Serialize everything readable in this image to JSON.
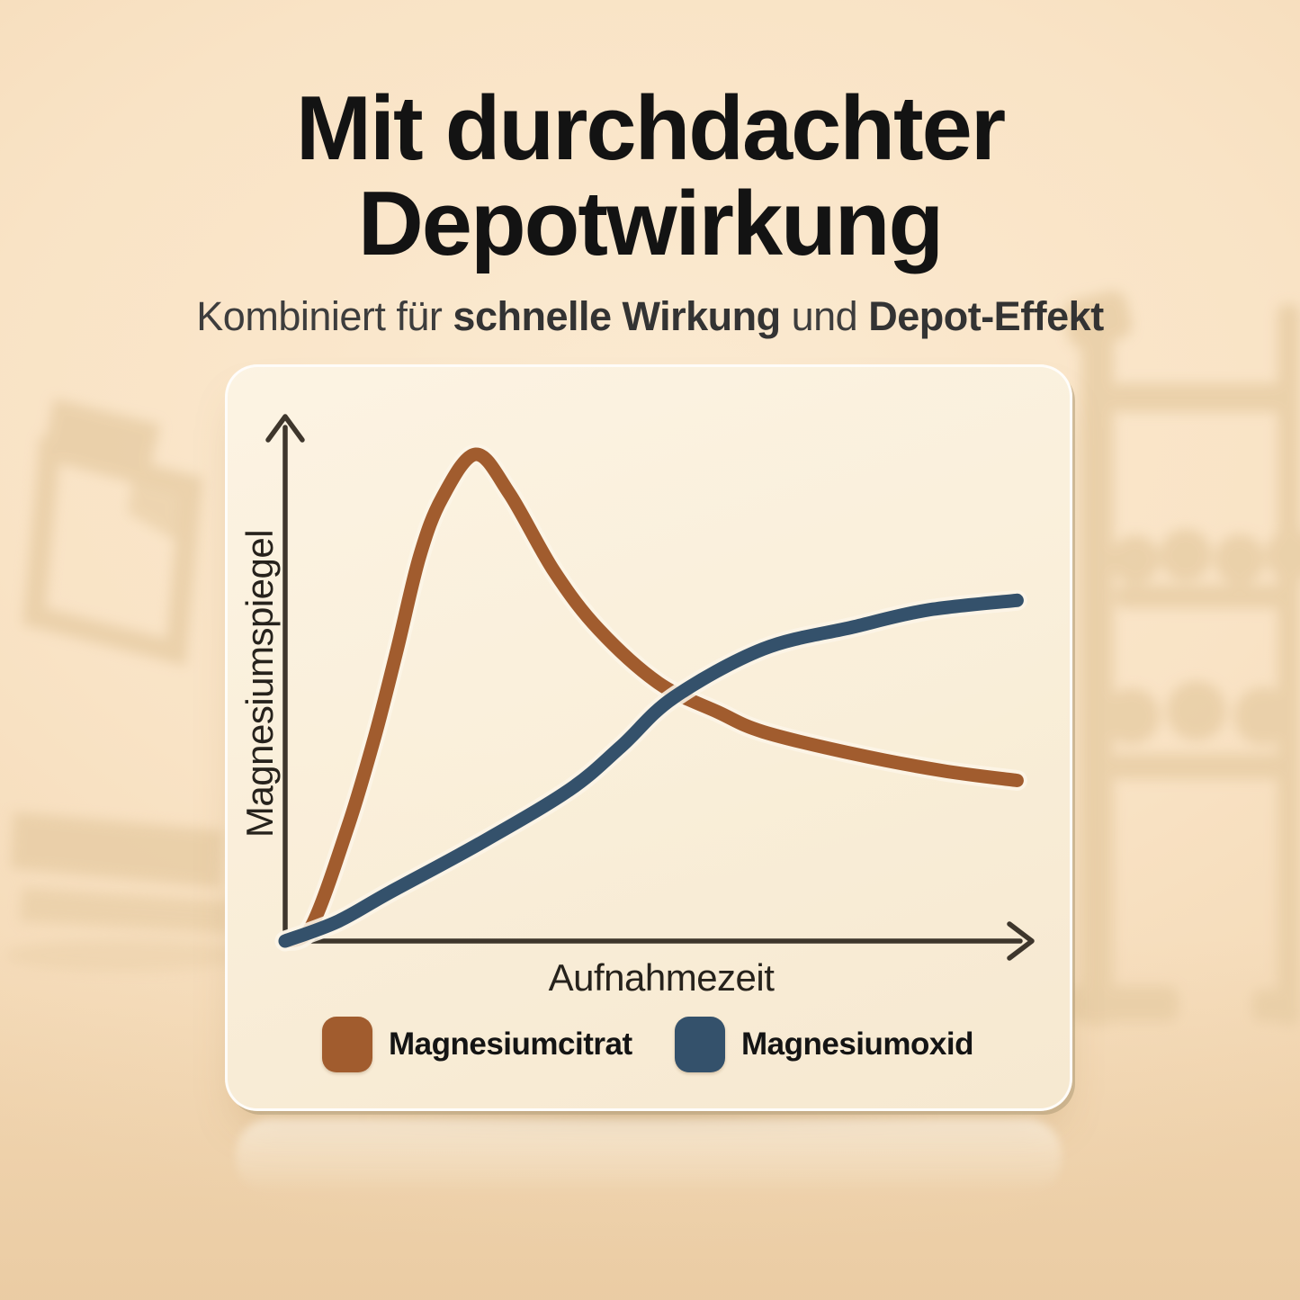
{
  "page": {
    "title_line1": "Mit durchdachter",
    "title_line2": "Depotwirkung",
    "subtitle": {
      "part1": "Kombiniert für ",
      "bold1": "schnelle Wirkung",
      "part2": " und ",
      "bold2": "Depot-Effekt"
    }
  },
  "chart_data": {
    "type": "line",
    "title": "",
    "xlabel": "Aufnahmezeit",
    "ylabel": "Magnesiumspiegel",
    "x_axis": {
      "min": 0,
      "max": 10,
      "tick_labels": "none",
      "note": "relative absorption time, no numeric ticks shown"
    },
    "y_axis": {
      "min": 0,
      "max": 100,
      "tick_labels": "none",
      "note": "relative magnesium level, no numeric ticks shown"
    },
    "grid": false,
    "legend_position": "bottom",
    "series": [
      {
        "name": "Magnesiumcitrat",
        "color": "#A15C2E",
        "shape": "fast rise to early peak, then slow decline",
        "points": [
          [
            0,
            0
          ],
          [
            0.35,
            3
          ],
          [
            0.85,
            24
          ],
          [
            1.2,
            42
          ],
          [
            1.5,
            60
          ],
          [
            1.8,
            79
          ],
          [
            2.1,
            91
          ],
          [
            2.55,
            100
          ],
          [
            3.0,
            92
          ],
          [
            3.6,
            76
          ],
          [
            4.2,
            64
          ],
          [
            5.0,
            53
          ],
          [
            5.8,
            47
          ],
          [
            6.4,
            43
          ],
          [
            7.6,
            38.5
          ],
          [
            8.8,
            35
          ],
          [
            9.8,
            33
          ]
        ]
      },
      {
        "name": "Magnesiumoxid",
        "color": "#34516B",
        "shape": "slow sigmoidal rise that overtakes citrate and keeps climbing (depot effect)",
        "points": [
          [
            0,
            0
          ],
          [
            0.7,
            4
          ],
          [
            1.4,
            10
          ],
          [
            2.6,
            20
          ],
          [
            3.8,
            31
          ],
          [
            4.5,
            40
          ],
          [
            5.2,
            50
          ],
          [
            6.4,
            60
          ],
          [
            7.6,
            64.5
          ],
          [
            8.6,
            68
          ],
          [
            9.8,
            70
          ]
        ]
      }
    ]
  },
  "colors": {
    "background_top": "#FBEAD1",
    "background_bottom": "#F3D8B4",
    "silhouette": "#E7CCA4",
    "card_background": "#F9EED9",
    "axis": "#3E362C",
    "curve_halo": "rgba(252,245,231,0.88)",
    "citrate_brown": "#A15C2E",
    "oxide_blue": "#34516B",
    "title_text": "#131313",
    "subtitle_text": "#3D3D3D"
  }
}
